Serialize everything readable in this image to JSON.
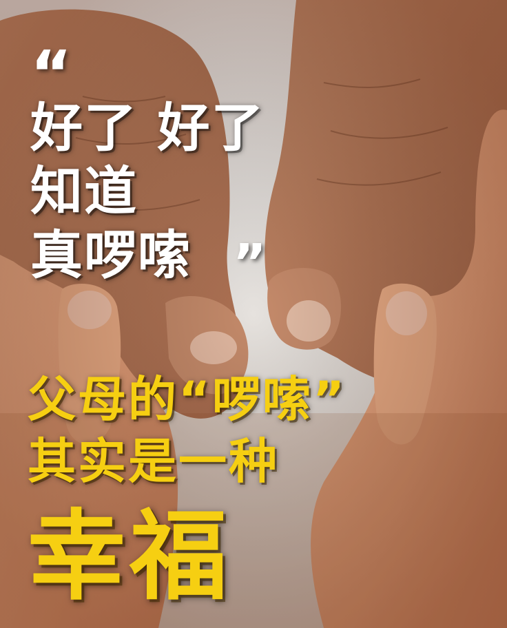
{
  "poster": {
    "open_quote": "“",
    "close_quote": "”",
    "white_lines": [
      "好了 好了",
      "知道",
      "真啰嗦"
    ],
    "yellow_lines": [
      "父母的“啰嗦”",
      "其实是一种"
    ],
    "big_word": "幸福",
    "colors": {
      "white_text": "#ffffff",
      "yellow_text": "#f6cf12",
      "background": "#e9e6e3"
    }
  }
}
